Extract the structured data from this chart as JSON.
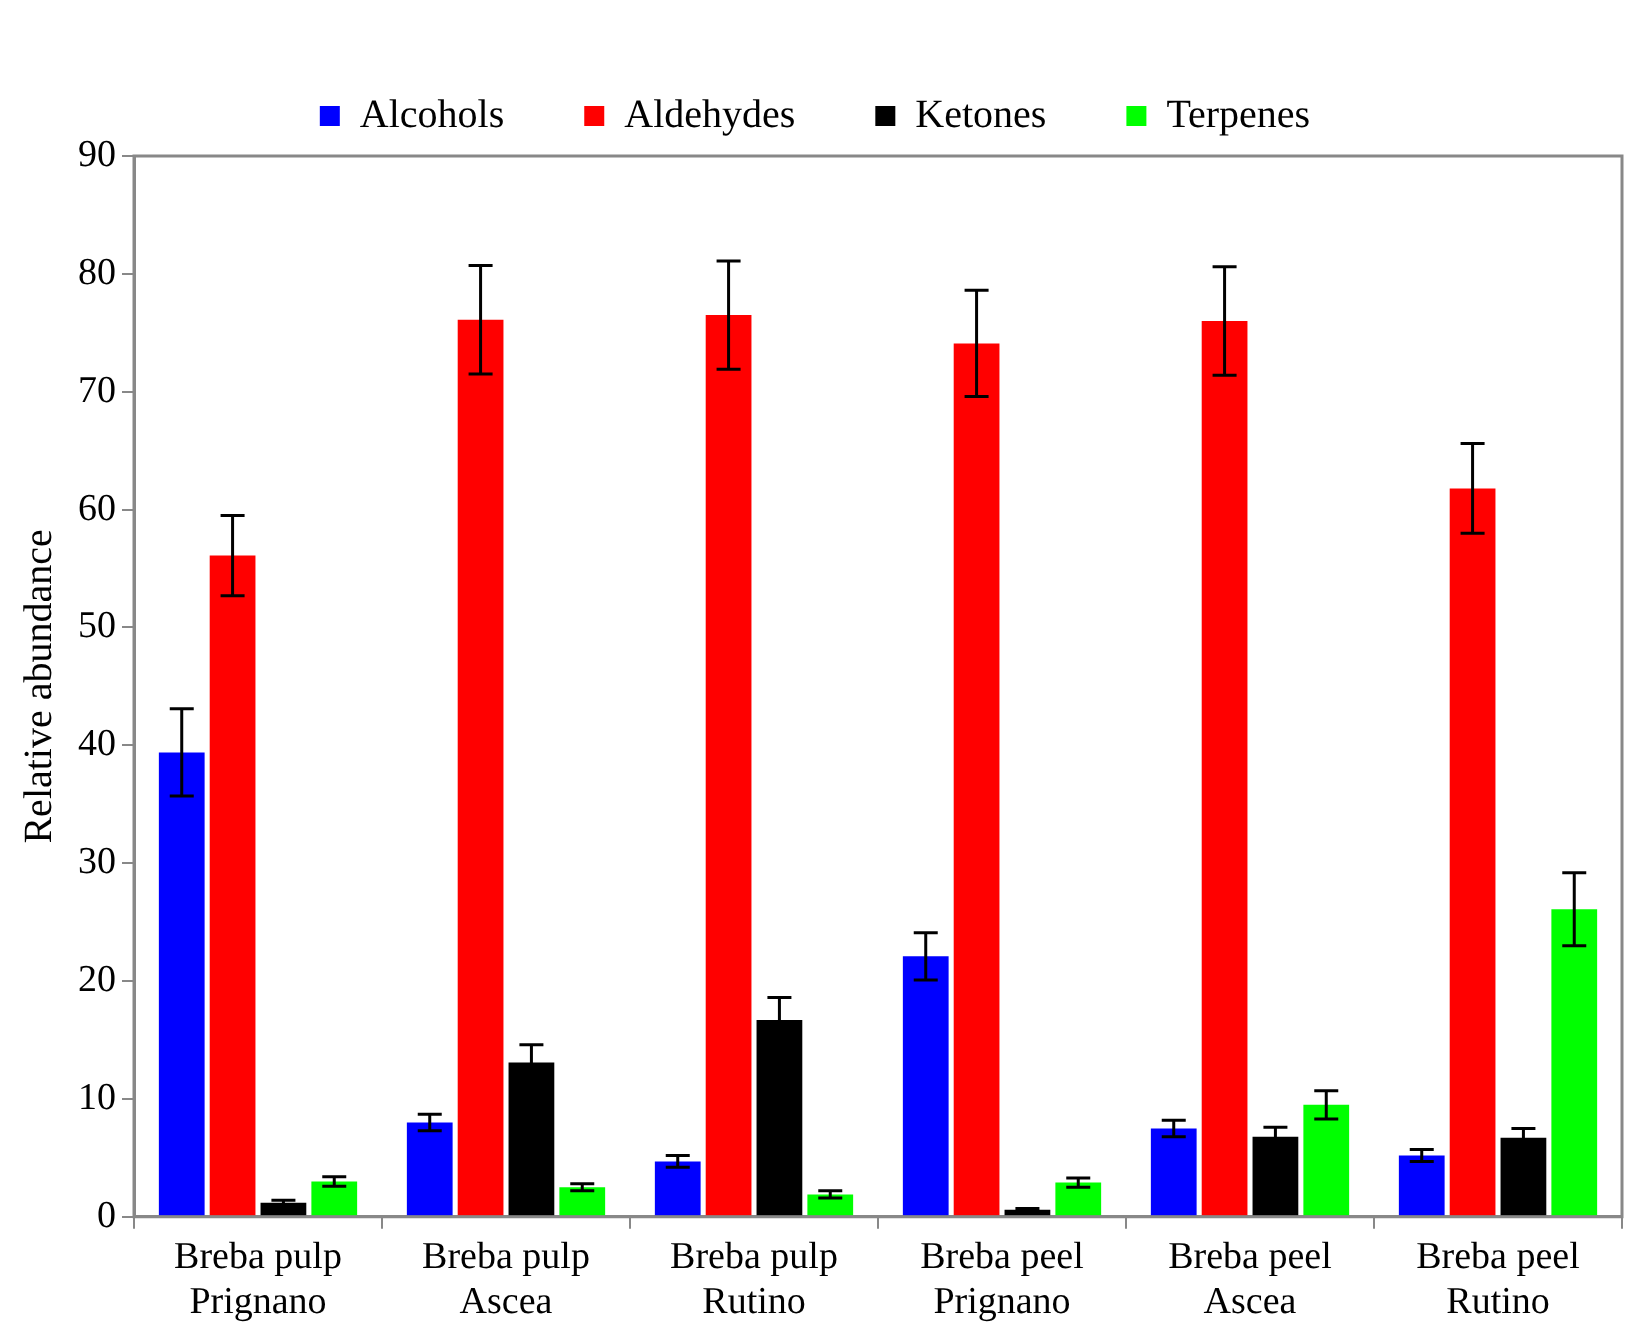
{
  "chart_data": {
    "type": "bar",
    "ylabel": "Relative abundance",
    "categories": [
      "Breba pulp\nPrignano",
      "Breba pulp\nAscea",
      "Breba pulp\nRutino",
      "Breba peel\nPrignano",
      "Breba peel\nAscea",
      "Breba peel\nRutino"
    ],
    "series": [
      {
        "name": "Alcohols",
        "color": "#0000ff",
        "values": [
          39.4,
          8.0,
          4.7,
          22.1,
          7.5,
          5.2
        ],
        "errors": [
          3.7,
          0.7,
          0.5,
          2.0,
          0.7,
          0.5
        ]
      },
      {
        "name": "Aldehydes",
        "color": "#ff0000",
        "values": [
          56.1,
          76.1,
          76.5,
          74.1,
          76.0,
          61.8
        ],
        "errors": [
          3.4,
          4.6,
          4.6,
          4.5,
          4.6,
          3.8
        ]
      },
      {
        "name": "Ketones",
        "color": "#000000",
        "values": [
          1.2,
          13.1,
          16.7,
          0.6,
          6.8,
          6.7
        ],
        "errors": [
          0.2,
          1.5,
          1.9,
          0.1,
          0.8,
          0.8
        ]
      },
      {
        "name": "Terpenes",
        "color": "#00ff00",
        "values": [
          3.0,
          2.5,
          1.9,
          2.9,
          9.5,
          26.1
        ],
        "errors": [
          0.4,
          0.3,
          0.3,
          0.4,
          1.2,
          3.1
        ]
      }
    ],
    "ylim": [
      0,
      90
    ],
    "yticks": [
      0,
      10,
      20,
      30,
      40,
      50,
      60,
      70,
      80,
      90
    ],
    "grid": false,
    "legend": "top"
  }
}
